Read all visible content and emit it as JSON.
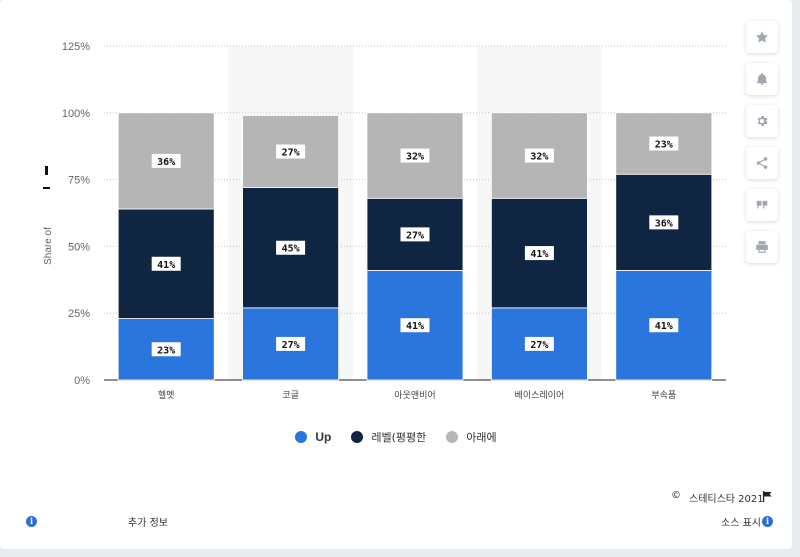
{
  "chart_data": {
    "type": "bar",
    "stacked": true,
    "categories": [
      "헬멧",
      "코글",
      "아웃앤비어",
      "베이스레이어",
      "부속품"
    ],
    "series": [
      {
        "name": "Up",
        "color": "#2a76dd",
        "values": [
          23,
          27,
          41,
          27,
          41
        ],
        "labels": [
          "23%",
          "27%",
          "41%",
          "27%",
          "41%"
        ]
      },
      {
        "name": "레벨(평평한",
        "color": "#0f2541",
        "values": [
          41,
          45,
          27,
          41,
          36
        ],
        "labels": [
          "41%",
          "45%",
          "27%",
          "41%",
          "36%"
        ]
      },
      {
        "name": "아래에",
        "color": "#b5b5b5",
        "values": [
          36,
          27,
          32,
          32,
          23
        ],
        "labels": [
          "36%",
          "27%",
          "32%",
          "32%",
          "23%"
        ]
      }
    ],
    "ylabel": "Share of",
    "ylim": [
      0,
      125
    ],
    "yticks": [
      0,
      25,
      50,
      75,
      100,
      125
    ],
    "ytick_labels": [
      "0%",
      "25%",
      "50%",
      "75%",
      "100%",
      "125%"
    ],
    "grid": true,
    "legend_position": "bottom"
  },
  "toolbar": {
    "icons": [
      "star-icon",
      "bell-icon",
      "gear-icon",
      "share-icon",
      "quote-icon",
      "print-icon"
    ]
  },
  "footer": {
    "copyright_symbol": "©",
    "copyright": "스테티스타 2021",
    "additional_info": "추가 정보",
    "show_source": "소스 표시"
  }
}
